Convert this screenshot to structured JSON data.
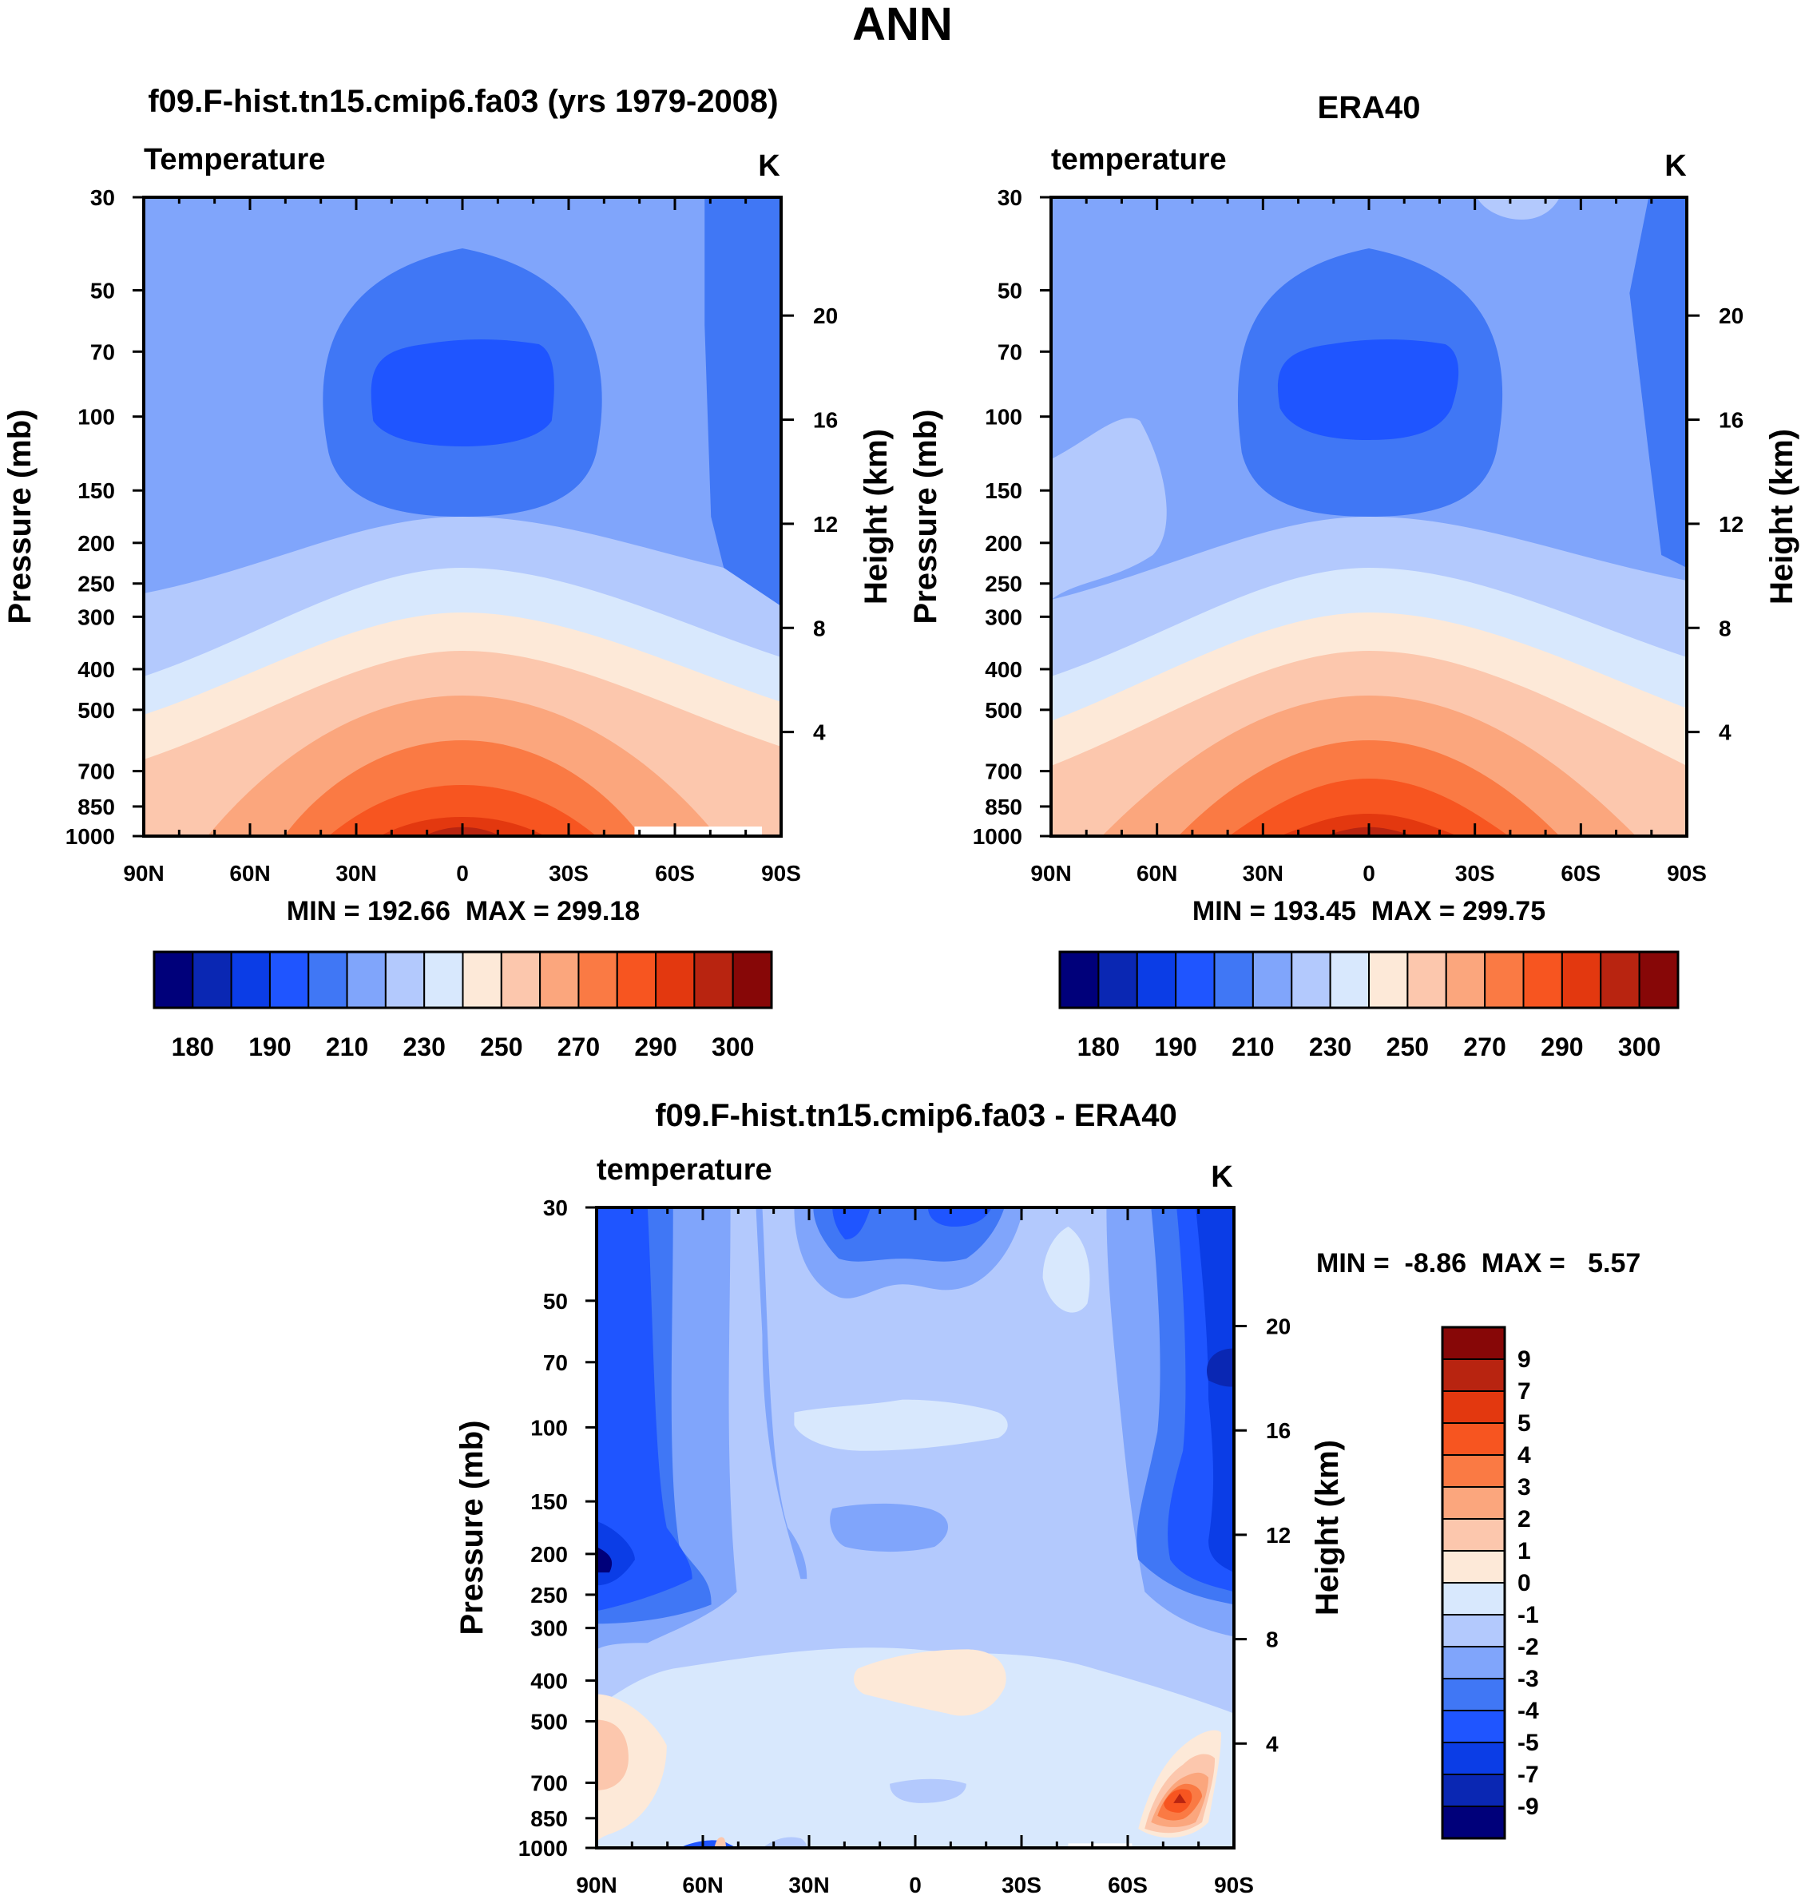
{
  "title": "ANN",
  "colors": {
    "temp_palette": [
      "#00007a",
      "#0a27b3",
      "#0b3de6",
      "#1f55ff",
      "#4077f5",
      "#80a5fb",
      "#b3c9fd",
      "#d8e8fd",
      "#fde9d8",
      "#fcc7ad",
      "#fba67d",
      "#fa7a44",
      "#f75520",
      "#e3380f",
      "#b82410",
      "#870707"
    ],
    "diff_palette": [
      "#00007a",
      "#0a27b3",
      "#0b3de6",
      "#1f55ff",
      "#4077f5",
      "#80a5fb",
      "#b3c9fd",
      "#d8e8fd",
      "#fde9d8",
      "#fcc7ad",
      "#fba67d",
      "#fa7a44",
      "#f75520",
      "#e3380f",
      "#b82410",
      "#870707"
    ]
  },
  "chart_data": [
    {
      "type": "heatmap",
      "title": "f09.F-hist.tn15.cmip6.fa03 (yrs 1979-2008)",
      "left_label": "Temperature",
      "units": "K",
      "xlabel": "",
      "ylabel": "Pressure (mb)",
      "ylabel_right": "Height (km)",
      "x_ticks": [
        "90N",
        "60N",
        "30N",
        "0",
        "30S",
        "60S",
        "90S"
      ],
      "y_ticks": [
        "30",
        "50",
        "70",
        "100",
        "150",
        "200",
        "250",
        "300",
        "400",
        "500",
        "700",
        "850",
        "1000"
      ],
      "y_ticks_right": [
        "20",
        "16",
        "12",
        "8",
        "4"
      ],
      "xlim": [
        90,
        -90
      ],
      "ylim": [
        1000,
        30
      ],
      "stats": "MIN = 192.66  MAX = 299.18",
      "colorbar_labels": [
        "180",
        "190",
        "210",
        "230",
        "250",
        "270",
        "290",
        "300"
      ],
      "field": "model"
    },
    {
      "type": "heatmap",
      "title": "ERA40",
      "left_label": "temperature",
      "units": "K",
      "xlabel": "",
      "ylabel": "Pressure (mb)",
      "ylabel_right": "Height (km)",
      "x_ticks": [
        "90N",
        "60N",
        "30N",
        "0",
        "30S",
        "60S",
        "90S"
      ],
      "y_ticks": [
        "30",
        "50",
        "70",
        "100",
        "150",
        "200",
        "250",
        "300",
        "400",
        "500",
        "700",
        "850",
        "1000"
      ],
      "y_ticks_right": [
        "20",
        "16",
        "12",
        "8",
        "4"
      ],
      "xlim": [
        90,
        -90
      ],
      "ylim": [
        1000,
        30
      ],
      "stats": "MIN = 193.45  MAX = 299.75",
      "colorbar_labels": [
        "180",
        "190",
        "210",
        "230",
        "250",
        "270",
        "290",
        "300"
      ],
      "field": "obs"
    },
    {
      "type": "heatmap",
      "title": "f09.F-hist.tn15.cmip6.fa03 - ERA40",
      "left_label": "temperature",
      "units": "K",
      "xlabel": "",
      "ylabel": "Pressure (mb)",
      "ylabel_right": "Height (km)",
      "x_ticks": [
        "90N",
        "60N",
        "30N",
        "0",
        "30S",
        "60S",
        "90S"
      ],
      "y_ticks": [
        "30",
        "50",
        "70",
        "100",
        "150",
        "200",
        "250",
        "300",
        "400",
        "500",
        "700",
        "850",
        "1000"
      ],
      "y_ticks_right": [
        "20",
        "16",
        "12",
        "8",
        "4"
      ],
      "xlim": [
        90,
        -90
      ],
      "ylim": [
        1000,
        30
      ],
      "stats": "MIN =  -8.86  MAX =   5.57",
      "colorbar_labels": [
        "9",
        "7",
        "5",
        "4",
        "3",
        "2",
        "1",
        "0",
        "-1",
        "-2",
        "-3",
        "-4",
        "-5",
        "-7",
        "-9"
      ],
      "field": "diff"
    }
  ]
}
